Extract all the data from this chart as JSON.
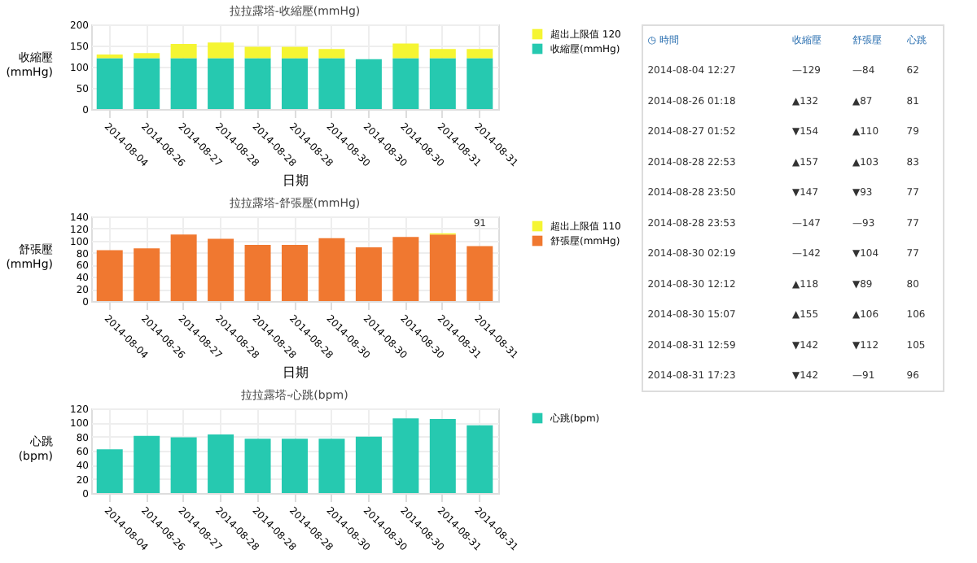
{
  "chart_data": [
    {
      "type": "bar",
      "title": "拉拉露塔-收縮壓(mmHg)",
      "xlabel": "日期",
      "ylabel": "收縮壓\n(mmHg)",
      "stacked": true,
      "categories": [
        "2014-08-04",
        "2014-08-26",
        "2014-08-27",
        "2014-08-28",
        "2014-08-28",
        "2014-08-28",
        "2014-08-30",
        "2014-08-30",
        "2014-08-30",
        "2014-08-31",
        "2014-08-31"
      ],
      "series": [
        {
          "name": "收縮壓(mmHg)",
          "color": "#26c9b0",
          "values": [
            120,
            120,
            120,
            120,
            120,
            120,
            120,
            118,
            120,
            120,
            120
          ]
        },
        {
          "name": "超出上限值 120",
          "color": "#f5f532",
          "values": [
            9,
            12,
            34,
            37,
            27,
            27,
            22,
            null,
            35,
            22,
            22
          ]
        }
      ],
      "ylim": [
        0,
        200
      ],
      "yticks": [
        0,
        50,
        100,
        150,
        200
      ],
      "grid": true,
      "legend": "right"
    },
    {
      "type": "bar",
      "title": "拉拉露塔-舒張壓(mmHg)",
      "xlabel": "日期",
      "ylabel": "舒張壓\n(mmHg)",
      "stacked": true,
      "categories": [
        "2014-08-04",
        "2014-08-26",
        "2014-08-27",
        "2014-08-28",
        "2014-08-28",
        "2014-08-28",
        "2014-08-30",
        "2014-08-30",
        "2014-08-30",
        "2014-08-31",
        "2014-08-31"
      ],
      "series": [
        {
          "name": "舒張壓(mmHg)",
          "color": "#f07830",
          "values": [
            84,
            87,
            110,
            103,
            93,
            93,
            104,
            89,
            106,
            110,
            91
          ]
        },
        {
          "name": "超出上限值 110",
          "color": "#f5f532",
          "values": [
            null,
            null,
            null,
            null,
            null,
            null,
            null,
            null,
            null,
            2,
            null
          ]
        }
      ],
      "ylim": [
        0,
        140
      ],
      "yticks": [
        0,
        20,
        40,
        60,
        80,
        100,
        120,
        140
      ],
      "grid": true,
      "legend": "right",
      "annotations": [
        {
          "text": "91",
          "x": "2014-08-31",
          "y": 91
        }
      ]
    },
    {
      "type": "bar",
      "title": "拉拉露塔-心跳(bpm)",
      "ylabel": "心跳\n(bpm)",
      "categories": [
        "2014-08-04",
        "2014-08-26",
        "2014-08-27",
        "2014-08-28",
        "2014-08-28",
        "2014-08-28",
        "2014-08-30",
        "2014-08-30",
        "2014-08-30",
        "2014-08-31",
        "2014-08-31"
      ],
      "series": [
        {
          "name": "心跳(bpm)",
          "color": "#26c9b0",
          "values": [
            62,
            81,
            79,
            83,
            77,
            77,
            77,
            80,
            106,
            105,
            96
          ]
        }
      ],
      "ylim": [
        0,
        120
      ],
      "yticks": [
        0,
        20,
        40,
        60,
        80,
        100,
        120
      ],
      "grid": true,
      "legend": "right"
    },
    {
      "type": "other",
      "annotations": [
        "◷ 時間",
        "收縮壓",
        "舒張壓",
        "心跳",
        "2014-08-04 12:27",
        "—129",
        "—84",
        "62",
        "2014-08-26 01:18",
        "▲132",
        "▲87",
        "81",
        "2014-08-27 01:52",
        "▼154",
        "▲110",
        "79",
        "2014-08-28 22:53",
        "▲157",
        "▲103",
        "83",
        "2014-08-28 23:50",
        "▼147",
        "▼93",
        "77",
        "2014-08-28 23:53",
        "—147",
        "—93",
        "77",
        "2014-08-30 02:19",
        "—142",
        "▼104",
        "77",
        "2014-08-30 12:12",
        "▲118",
        "▼89",
        "80",
        "2014-08-30 15:07",
        "▲155",
        "▲106",
        "106",
        "2014-08-31 12:59",
        "▼142",
        "▼112",
        "105",
        "2014-08-31 17:23",
        "▼142",
        "—91",
        "96"
      ]
    }
  ]
}
